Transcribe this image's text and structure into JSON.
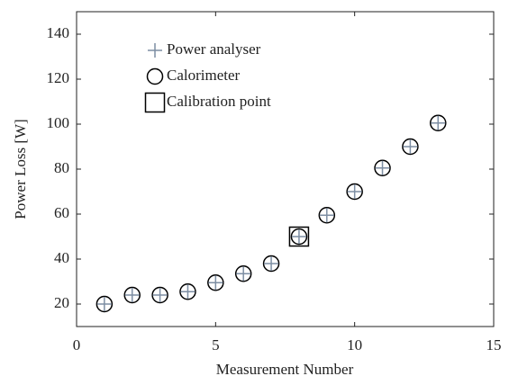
{
  "chart_data": {
    "type": "scatter",
    "xlabel": "Measurement Number",
    "ylabel": "Power Loss [W]",
    "xlim": [
      0,
      15
    ],
    "xticks": [
      0,
      5,
      10,
      15
    ],
    "ylim": [
      10,
      150
    ],
    "yticks": [
      20,
      40,
      60,
      80,
      100,
      120,
      140
    ],
    "legend": "upper left",
    "series": [
      {
        "name": "Power analyser",
        "color": "#7d8ea3",
        "marker": "plus",
        "x": [
          1,
          2,
          3,
          4,
          5,
          6,
          7,
          8,
          9,
          10,
          11,
          12,
          13
        ],
        "values": [
          20,
          24,
          24,
          25.5,
          29.5,
          33.5,
          38,
          50,
          59.5,
          70,
          80.5,
          90,
          100.5
        ]
      },
      {
        "name": "Calorimeter",
        "color": "#000000",
        "marker": "circle",
        "x": [
          1,
          2,
          3,
          4,
          5,
          6,
          7,
          8,
          9,
          10,
          11,
          12,
          13
        ],
        "values": [
          20,
          24,
          24,
          25.5,
          29.5,
          33.5,
          38,
          50,
          59.5,
          70,
          80.5,
          90,
          100.5
        ]
      },
      {
        "name": "Calibration point",
        "color": "#000000",
        "marker": "square",
        "x": [
          8
        ],
        "values": [
          50
        ]
      }
    ]
  }
}
